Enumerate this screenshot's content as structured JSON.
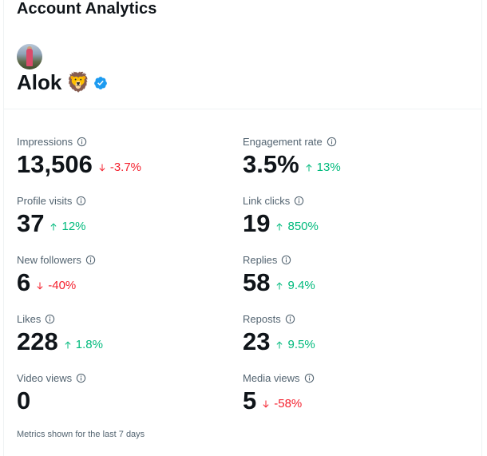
{
  "header": {
    "title": "Account Analytics"
  },
  "profile": {
    "name": "Alok",
    "emoji": "🦁"
  },
  "metrics": [
    {
      "label": "Impressions",
      "value": "13,506",
      "change": "-3.7%",
      "trend": "down"
    },
    {
      "label": "Engagement rate",
      "value": "3.5%",
      "change": "13%",
      "trend": "up"
    },
    {
      "label": "Profile visits",
      "value": "37",
      "change": "12%",
      "trend": "up"
    },
    {
      "label": "Link clicks",
      "value": "19",
      "change": "850%",
      "trend": "up"
    },
    {
      "label": "New followers",
      "value": "6",
      "change": "-40%",
      "trend": "down"
    },
    {
      "label": "Replies",
      "value": "58",
      "change": "9.4%",
      "trend": "up"
    },
    {
      "label": "Likes",
      "value": "228",
      "change": "1.8%",
      "trend": "up"
    },
    {
      "label": "Reposts",
      "value": "23",
      "change": "9.5%",
      "trend": "up"
    },
    {
      "label": "Video views",
      "value": "0",
      "change": "",
      "trend": "none"
    },
    {
      "label": "Media views",
      "value": "5",
      "change": "-58%",
      "trend": "down"
    }
  ],
  "footer": {
    "note": "Metrics shown for the last 7 days"
  },
  "colors": {
    "up": "#00ba7c",
    "down": "#f4212e",
    "verified": "#1d9bf0"
  }
}
